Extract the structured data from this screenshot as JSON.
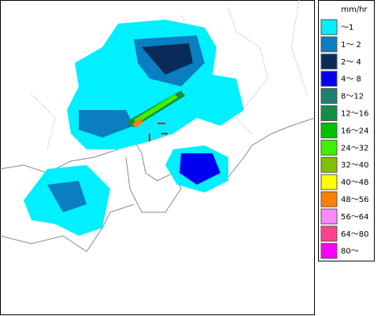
{
  "legend": {
    "unit": "mm/hr",
    "items": [
      {
        "label": "～1",
        "color": "#00f0ff"
      },
      {
        "label": "1～ 2",
        "color": "#0a7ec0"
      },
      {
        "label": "2～ 4",
        "color": "#0a2a5a"
      },
      {
        "label": "4～ 8",
        "color": "#0000f0"
      },
      {
        "label": "8～12",
        "color": "#208070"
      },
      {
        "label": "12～16",
        "color": "#109040"
      },
      {
        "label": "16～24",
        "color": "#00c000"
      },
      {
        "label": "24～32",
        "color": "#40f000"
      },
      {
        "label": "32～40",
        "color": "#80c000"
      },
      {
        "label": "40～48",
        "color": "#ffff00"
      },
      {
        "label": "48～56",
        "color": "#ff8000"
      },
      {
        "label": "56～64",
        "color": "#ff88ff"
      },
      {
        "label": "64～80",
        "color": "#ff4090"
      },
      {
        "label": "80～",
        "color": "#ff00ff"
      }
    ]
  }
}
